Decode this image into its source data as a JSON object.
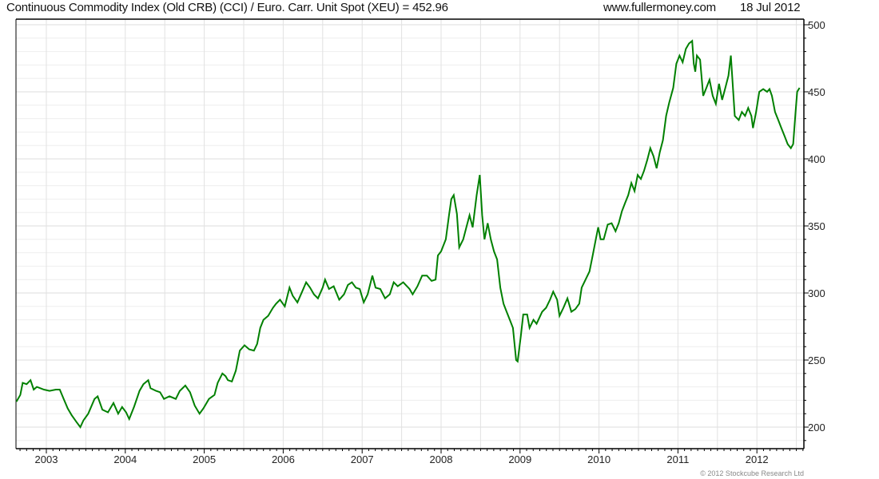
{
  "header": {
    "title": "Continuous Commodity Index (Old CRB) (CCI) / Euro. Carr. Unit Spot (XEU) = 452.96",
    "site": "www.fullermoney.com",
    "date": "18 Jul 2012"
  },
  "footer": {
    "copyright": "© 2012 Stockcube Research Ltd"
  },
  "chart_data": {
    "type": "line",
    "title": "Continuous Commodity Index (Old CRB) (CCI) / Euro. Carr. Unit Spot (XEU) = 452.96",
    "xlabel": "",
    "ylabel": "",
    "xlim": [
      2002.62,
      2012.6
    ],
    "ylim": [
      185,
      505
    ],
    "y_axis_side": "right",
    "y_ticks": [
      200,
      250,
      300,
      350,
      400,
      450,
      500
    ],
    "x_ticks": [
      2003,
      2004,
      2005,
      2006,
      2007,
      2008,
      2009,
      2010,
      2011,
      2012
    ],
    "x_tick_labels": [
      "2003",
      "2004",
      "2005",
      "2006",
      "2007",
      "2008",
      "2009",
      "2010",
      "2011",
      "2012"
    ],
    "grid": true,
    "line_color": "#008000",
    "series": [
      {
        "name": "CCI / XEU",
        "x": [
          2002.62,
          2002.67,
          2002.7,
          2002.75,
          2002.8,
          2002.84,
          2002.88,
          2002.97,
          2003.04,
          2003.12,
          2003.17,
          2003.22,
          2003.27,
          2003.32,
          2003.38,
          2003.43,
          2003.47,
          2003.53,
          2003.61,
          2003.65,
          2003.71,
          2003.78,
          2003.85,
          2003.91,
          2003.96,
          2004.01,
          2004.05,
          2004.11,
          2004.18,
          2004.23,
          2004.29,
          2004.32,
          2004.39,
          2004.44,
          2004.49,
          2004.56,
          2004.64,
          2004.69,
          2004.76,
          2004.82,
          2004.88,
          2004.94,
          2004.99,
          2005.06,
          2005.13,
          2005.17,
          2005.23,
          2005.27,
          2005.3,
          2005.35,
          2005.4,
          2005.45,
          2005.51,
          2005.57,
          2005.63,
          2005.67,
          2005.71,
          2005.75,
          2005.81,
          2005.87,
          2005.91,
          2005.96,
          2006.02,
          2006.08,
          2006.12,
          2006.18,
          2006.24,
          2006.29,
          2006.34,
          2006.39,
          2006.44,
          2006.5,
          2006.53,
          2006.58,
          2006.64,
          2006.71,
          2006.77,
          2006.82,
          2006.87,
          2006.92,
          2006.97,
          2007.02,
          2007.07,
          2007.13,
          2007.17,
          2007.23,
          2007.29,
          2007.35,
          2007.4,
          2007.45,
          2007.52,
          2007.6,
          2007.64,
          2007.7,
          2007.76,
          2007.82,
          2007.88,
          2007.93,
          2007.96,
          2008.0,
          2008.06,
          2008.1,
          2008.13,
          2008.16,
          2008.2,
          2008.23,
          2008.28,
          2008.32,
          2008.36,
          2008.4,
          2008.45,
          2008.49,
          2008.52,
          2008.55,
          2008.59,
          2008.63,
          2008.67,
          2008.71,
          2008.75,
          2008.79,
          2008.83,
          2008.87,
          2008.91,
          2008.95,
          2008.97,
          2009.01,
          2009.04,
          2009.09,
          2009.12,
          2009.17,
          2009.21,
          2009.28,
          2009.33,
          2009.38,
          2009.42,
          2009.47,
          2009.5,
          2009.55,
          2009.6,
          2009.65,
          2009.7,
          2009.75,
          2009.78,
          2009.83,
          2009.88,
          2009.92,
          2009.96,
          2009.99,
          2010.02,
          2010.06,
          2010.11,
          2010.16,
          2010.21,
          2010.25,
          2010.29,
          2010.33,
          2010.37,
          2010.41,
          2010.45,
          2010.49,
          2010.53,
          2010.57,
          2010.61,
          2010.65,
          2010.69,
          2010.73,
          2010.77,
          2010.81,
          2010.85,
          2010.89,
          2010.94,
          2010.98,
          2011.02,
          2011.06,
          2011.1,
          2011.14,
          2011.18,
          2011.2,
          2011.22,
          2011.24,
          2011.28,
          2011.32,
          2011.36,
          2011.4,
          2011.44,
          2011.48,
          2011.52,
          2011.56,
          2011.6,
          2011.64,
          2011.67,
          2011.72,
          2011.77,
          2011.81,
          2011.85,
          2011.89,
          2011.93,
          2011.95,
          2011.99,
          2012.03,
          2012.08,
          2012.13,
          2012.16,
          2012.19,
          2012.23,
          2012.27,
          2012.31,
          2012.35,
          2012.39,
          2012.43,
          2012.46,
          2012.49,
          2012.51,
          2012.54
        ],
        "y": [
          219,
          224,
          233,
          232,
          235,
          228,
          230,
          228,
          227,
          228,
          228,
          221,
          214,
          209,
          204,
          200,
          205,
          210,
          221,
          223,
          213,
          211,
          218,
          210,
          215,
          211,
          206,
          215,
          227,
          232,
          235,
          229,
          227,
          226,
          221,
          223,
          221,
          227,
          231,
          226,
          216,
          210,
          214,
          221,
          224,
          233,
          240,
          238,
          235,
          234,
          242,
          257,
          261,
          258,
          257,
          262,
          274,
          280,
          283,
          289,
          292,
          295,
          290,
          304,
          298,
          293,
          301,
          308,
          304,
          299,
          296,
          304,
          310,
          303,
          305,
          295,
          299,
          306,
          308,
          304,
          303,
          293,
          299,
          313,
          304,
          303,
          296,
          299,
          308,
          305,
          308,
          303,
          299,
          305,
          313,
          313,
          309,
          310,
          328,
          331,
          340,
          358,
          370,
          373,
          359,
          334,
          340,
          349,
          358,
          349,
          373,
          388,
          358,
          340,
          352,
          340,
          331,
          325,
          304,
          292,
          286,
          280,
          274,
          250,
          249,
          268,
          284,
          284,
          274,
          280,
          277,
          286,
          289,
          295,
          301,
          295,
          283,
          289,
          296,
          286,
          288,
          292,
          304,
          310,
          316,
          328,
          340,
          349,
          340,
          340,
          351,
          352,
          346,
          352,
          361,
          367,
          373,
          382,
          376,
          388,
          385,
          391,
          399,
          408,
          402,
          393,
          405,
          414,
          432,
          442,
          453,
          471,
          477,
          472,
          482,
          486,
          488,
          471,
          465,
          477,
          474,
          447,
          453,
          459,
          447,
          441,
          456,
          444,
          453,
          462,
          477,
          432,
          429,
          435,
          432,
          438,
          432,
          423,
          435,
          450,
          452,
          450,
          452,
          447,
          435,
          429,
          423,
          417,
          411,
          408,
          411,
          435,
          450,
          452.96
        ]
      }
    ]
  }
}
